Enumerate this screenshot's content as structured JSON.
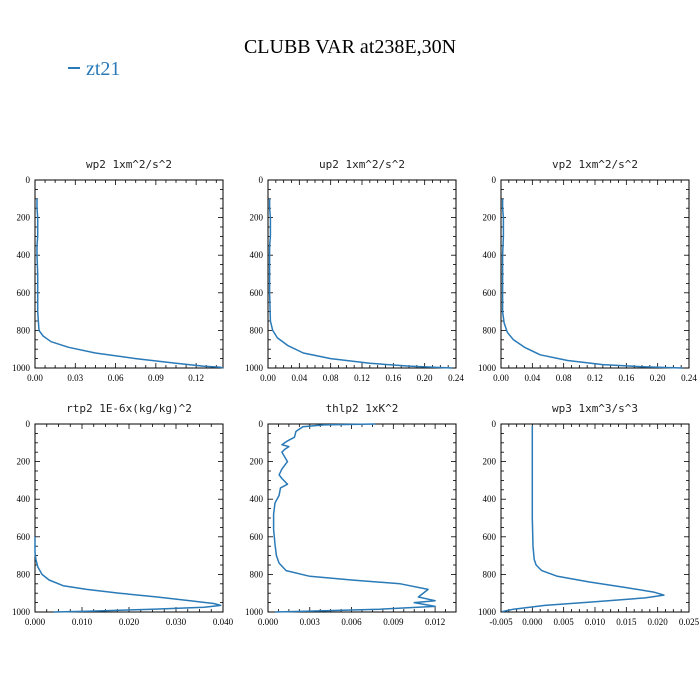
{
  "title": "CLUBB VAR at238E,30N",
  "legend": {
    "label": "zt21",
    "color": "#2a7ab8"
  },
  "chart_data": [
    {
      "type": "line",
      "title": "wp2  1xm^2/s^2",
      "xlim": [
        0,
        0.14
      ],
      "ylim": [
        1000,
        0
      ],
      "xticks": [
        "0.00",
        "0.03",
        "0.06",
        "0.09",
        "0.12"
      ],
      "xtick_vals": [
        0,
        0.03,
        0.06,
        0.09,
        0.12
      ],
      "yticks": [
        "0",
        "200",
        "400",
        "600",
        "800",
        "1000"
      ],
      "ytick_vals": [
        0,
        200,
        400,
        600,
        800,
        1000
      ],
      "series": [
        {
          "x": [
            0.0015,
            0.0015,
            0.002,
            0.002,
            0.002,
            0.0015,
            0.0015,
            0.002,
            0.002,
            0.003,
            0.006,
            0.012,
            0.025,
            0.045,
            0.075,
            0.105,
            0.125,
            0.138,
            0.14
          ],
          "y": [
            100,
            150,
            200,
            250,
            300,
            350,
            400,
            500,
            700,
            800,
            830,
            860,
            890,
            920,
            950,
            975,
            990,
            996,
            1000
          ]
        }
      ]
    },
    {
      "type": "line",
      "title": "up2  1xm^2/s^2",
      "xlim": [
        0,
        0.24
      ],
      "ylim": [
        1000,
        0
      ],
      "xticks": [
        "0.00",
        "0.04",
        "0.08",
        "0.12",
        "0.16",
        "0.20",
        "0.24"
      ],
      "xtick_vals": [
        0,
        0.04,
        0.08,
        0.12,
        0.16,
        0.2,
        0.24
      ],
      "yticks": [
        "0",
        "200",
        "400",
        "600",
        "800",
        "1000"
      ],
      "ytick_vals": [
        0,
        200,
        400,
        600,
        800,
        1000
      ],
      "series": [
        {
          "x": [
            0.002,
            0.002,
            0.003,
            0.003,
            0.003,
            0.002,
            0.002,
            0.002,
            0.003,
            0.006,
            0.012,
            0.025,
            0.045,
            0.08,
            0.13,
            0.18,
            0.215,
            0.235
          ],
          "y": [
            100,
            150,
            200,
            250,
            300,
            350,
            400,
            600,
            750,
            800,
            840,
            880,
            920,
            950,
            975,
            990,
            997,
            1000
          ]
        }
      ]
    },
    {
      "type": "line",
      "title": "vp2  1xm^2/s^2",
      "xlim": [
        0,
        0.24
      ],
      "ylim": [
        1000,
        0
      ],
      "xticks": [
        "0.00",
        "0.04",
        "0.08",
        "0.12",
        "0.16",
        "0.20",
        "0.24"
      ],
      "xtick_vals": [
        0,
        0.04,
        0.08,
        0.12,
        0.16,
        0.2,
        0.24
      ],
      "yticks": [
        "0",
        "200",
        "400",
        "600",
        "800",
        "1000"
      ],
      "ytick_vals": [
        0,
        200,
        400,
        600,
        800,
        1000
      ],
      "series": [
        {
          "x": [
            0.002,
            0.002,
            0.003,
            0.003,
            0.002,
            0.002,
            0.002,
            0.004,
            0.008,
            0.016,
            0.03,
            0.05,
            0.085,
            0.13,
            0.18,
            0.215,
            0.232
          ],
          "y": [
            100,
            150,
            200,
            300,
            400,
            600,
            700,
            760,
            810,
            850,
            890,
            930,
            960,
            982,
            993,
            998,
            1000
          ]
        }
      ]
    },
    {
      "type": "line",
      "title": "rtp2  1E-6x(kg/kg)^2",
      "xlim": [
        0,
        0.04
      ],
      "ylim": [
        1000,
        0
      ],
      "xticks": [
        "0.000",
        "0.010",
        "0.020",
        "0.030",
        "0.040"
      ],
      "xtick_vals": [
        0,
        0.01,
        0.02,
        0.03,
        0.04
      ],
      "yticks": [
        "0",
        "200",
        "400",
        "600",
        "800",
        "1000"
      ],
      "ytick_vals": [
        0,
        200,
        400,
        600,
        800,
        1000
      ],
      "series": [
        {
          "x": [
            0,
            0,
            0.0002,
            0.0006,
            0.0015,
            0.003,
            0.006,
            0.011,
            0.018,
            0.026,
            0.033,
            0.038,
            0.0395,
            0.036,
            0.025,
            0.012,
            0.004
          ],
          "y": [
            600,
            680,
            720,
            760,
            800,
            830,
            860,
            880,
            900,
            920,
            940,
            955,
            965,
            975,
            985,
            995,
            1000
          ]
        }
      ]
    },
    {
      "type": "line",
      "title": "thlp2  1xK^2",
      "xlim": [
        0,
        0.0135
      ],
      "ylim": [
        1000,
        0
      ],
      "xticks": [
        "0.000",
        "0.003",
        "0.006",
        "0.009",
        "0.012"
      ],
      "xtick_vals": [
        0,
        0.003,
        0.006,
        0.009,
        0.012
      ],
      "yticks": [
        "0",
        "200",
        "400",
        "600",
        "800",
        "1000"
      ],
      "ytick_vals": [
        0,
        200,
        400,
        600,
        800,
        1000
      ],
      "series": [
        {
          "x": [
            0.0077,
            0.004,
            0.0025,
            0.002,
            0.0019,
            0.0014,
            0.001,
            0.0015,
            0.0012,
            0.001,
            0.0014,
            0.001,
            0.0008,
            0.001,
            0.0014,
            0.0009,
            0.0008,
            0.0005,
            0.0004,
            0.0004,
            0.0005,
            0.0006,
            0.0008,
            0.0013,
            0.003,
            0.006,
            0.0095,
            0.0115,
            0.0108,
            0.012,
            0.0105,
            0.012,
            0.008,
            0.003,
            0.0005
          ],
          "y": [
            0,
            5,
            15,
            40,
            70,
            90,
            110,
            120,
            135,
            150,
            200,
            240,
            270,
            290,
            320,
            340,
            380,
            420,
            480,
            560,
            640,
            700,
            740,
            780,
            810,
            830,
            850,
            880,
            920,
            940,
            950,
            970,
            985,
            995,
            1000
          ]
        }
      ]
    },
    {
      "type": "line",
      "title": "wp3  1xm^3/s^3",
      "xlim": [
        -0.005,
        0.025
      ],
      "ylim": [
        1000,
        0
      ],
      "xticks": [
        "-0.005",
        "0.000",
        "0.005",
        "0.010",
        "0.015",
        "0.020",
        "0.025"
      ],
      "xtick_vals": [
        -0.005,
        0,
        0.005,
        0.01,
        0.015,
        0.02,
        0.025
      ],
      "yticks": [
        "0",
        "200",
        "400",
        "600",
        "800",
        "1000"
      ],
      "ytick_vals": [
        0,
        200,
        400,
        600,
        800,
        1000
      ],
      "series": [
        {
          "x": [
            0,
            0,
            0,
            0.0001,
            0.0003,
            0.0006,
            0.0015,
            0.004,
            0.009,
            0.015,
            0.0195,
            0.021,
            0.018,
            0.01,
            0.002,
            -0.003,
            -0.0048
          ],
          "y": [
            10,
            200,
            500,
            650,
            720,
            750,
            780,
            810,
            840,
            870,
            895,
            910,
            925,
            945,
            965,
            985,
            998
          ]
        }
      ]
    }
  ]
}
